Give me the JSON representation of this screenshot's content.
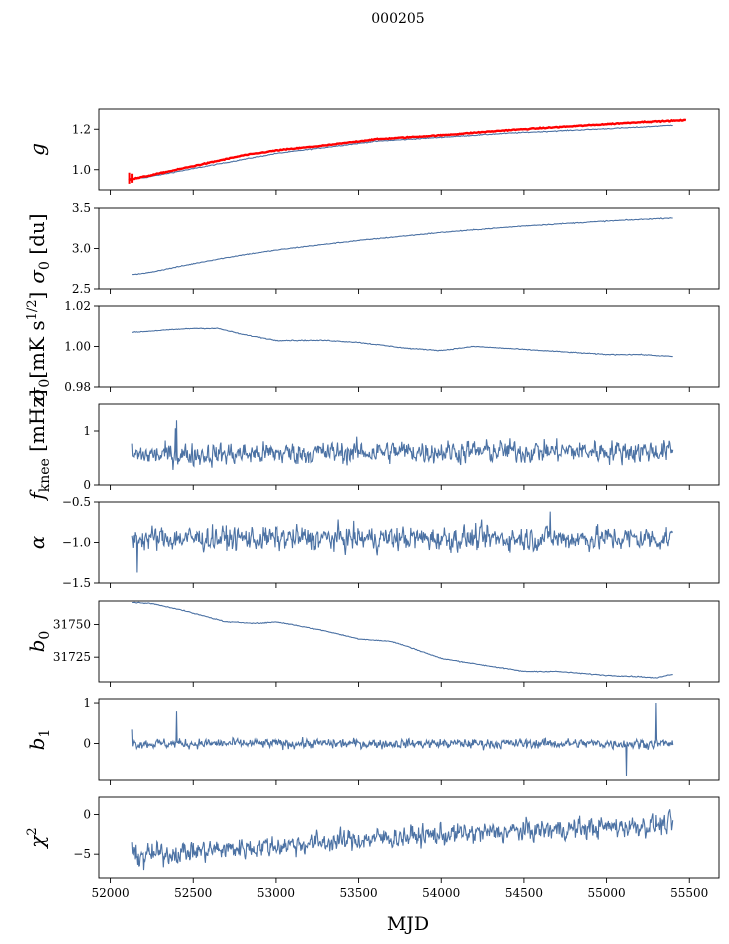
{
  "figure": {
    "suptitle": "000205",
    "xlabel": "MJD",
    "x_ticks": [
      52000,
      52500,
      53000,
      53500,
      54000,
      54500,
      55000,
      55500
    ],
    "xlim": [
      51930,
      55680
    ]
  },
  "chart_data": [
    {
      "type": "line",
      "ylabel": "g",
      "ylim": [
        0.9,
        1.3
      ],
      "yticks": [
        1.0,
        1.2
      ],
      "ytick_labels": [
        "1.0",
        "1.2"
      ],
      "series": [
        {
          "color": "#4c72a4",
          "x": [
            52120,
            52200,
            52400,
            52600,
            52800,
            53000,
            53300,
            53600,
            54000,
            54400,
            54800,
            55200,
            55400
          ],
          "y": [
            0.955,
            0.96,
            0.99,
            1.02,
            1.05,
            1.08,
            1.11,
            1.14,
            1.16,
            1.18,
            1.195,
            1.21,
            1.22
          ]
        },
        {
          "color": "#ff0000",
          "x": [
            52110,
            52200,
            52400,
            52600,
            52800,
            53000,
            53300,
            53600,
            54000,
            54400,
            54800,
            55200,
            55480
          ],
          "y": [
            0.95,
            0.965,
            1.0,
            1.035,
            1.07,
            1.095,
            1.12,
            1.15,
            1.17,
            1.195,
            1.215,
            1.235,
            1.245
          ]
        }
      ]
    },
    {
      "type": "line",
      "ylabel": "σ0 [du]",
      "ylim": [
        2.5,
        3.5
      ],
      "yticks": [
        2.5,
        3.0,
        3.5
      ],
      "ytick_labels": [
        "2.5",
        "3.0",
        "3.5"
      ],
      "series": [
        {
          "color": "#4c72a4",
          "x": [
            52130,
            52200,
            52400,
            52600,
            52800,
            53000,
            53200,
            53500,
            54000,
            54500,
            55000,
            55400
          ],
          "y": [
            2.68,
            2.69,
            2.77,
            2.85,
            2.92,
            2.98,
            3.03,
            3.1,
            3.2,
            3.28,
            3.34,
            3.38
          ]
        }
      ]
    },
    {
      "type": "line",
      "ylabel": "σ0[mK s^1/2]",
      "ylim": [
        0.98,
        1.02
      ],
      "yticks": [
        0.98,
        1.0,
        1.02
      ],
      "ytick_labels": [
        "0.98",
        "1.00",
        "1.02"
      ],
      "series": [
        {
          "color": "#4c72a4",
          "x": [
            52130,
            52300,
            52500,
            52650,
            52800,
            53000,
            53300,
            53500,
            53800,
            54000,
            54200,
            54400,
            54600,
            54800,
            55000,
            55200,
            55400
          ],
          "y": [
            1.007,
            1.008,
            1.009,
            1.009,
            1.006,
            1.003,
            1.003,
            1.002,
            0.999,
            0.998,
            1.0,
            0.999,
            0.998,
            0.997,
            0.996,
            0.996,
            0.995
          ]
        }
      ]
    },
    {
      "type": "line",
      "ylabel": "f_knee [mHz]",
      "ylim": [
        0,
        1.5
      ],
      "yticks": [
        0,
        1
      ],
      "ytick_labels": [
        "0",
        "1"
      ],
      "series": [
        {
          "color": "#4c72a4",
          "x_range": [
            52130,
            55400
          ],
          "n": 900,
          "baseline": [
            0.55,
            0.62,
            0.63
          ],
          "noise": 0.14,
          "spikes": [
            [
              52400,
              1.2
            ],
            [
              52390,
              1.05
            ]
          ]
        }
      ]
    },
    {
      "type": "line",
      "ylabel": "α",
      "ylim": [
        -1.5,
        -0.5
      ],
      "yticks": [
        -1.5,
        -1.0,
        -0.5
      ],
      "ytick_labels": [
        "−1.5",
        "−1.0",
        "−0.5"
      ],
      "series": [
        {
          "color": "#4c72a4",
          "x_range": [
            52130,
            55400
          ],
          "n": 900,
          "baseline": [
            -0.95,
            -0.95,
            -0.95
          ],
          "noise": 0.1,
          "spikes": [
            [
              52160,
              -1.37
            ],
            [
              54660,
              -0.62
            ]
          ]
        }
      ]
    },
    {
      "type": "line",
      "ylabel": "b0",
      "ylim": [
        31706,
        31768
      ],
      "yticks": [
        31725,
        31750
      ],
      "ytick_labels": [
        "31725",
        "31750"
      ],
      "series": [
        {
          "color": "#4c72a4",
          "x": [
            52130,
            52250,
            52400,
            52550,
            52700,
            52900,
            53000,
            53100,
            53300,
            53500,
            53700,
            53800,
            54000,
            54200,
            54500,
            54700,
            55000,
            55200,
            55300,
            55400
          ],
          "y": [
            31767,
            31766,
            31762,
            31757,
            31752,
            31751,
            31752,
            31750,
            31745,
            31739,
            31737,
            31733,
            31724,
            31720,
            31714,
            31714,
            31711,
            31710,
            31709,
            31712
          ]
        }
      ]
    },
    {
      "type": "line",
      "ylabel": "b1",
      "ylim": [
        -0.9,
        1.1
      ],
      "yticks": [
        0,
        1
      ],
      "ytick_labels": [
        "0",
        "1"
      ],
      "series": [
        {
          "color": "#4c72a4",
          "x_range": [
            52130,
            55400
          ],
          "n": 900,
          "baseline": [
            0.0,
            0.0,
            0.0
          ],
          "noise": 0.08,
          "spikes": [
            [
              52400,
              0.8
            ],
            [
              52130,
              0.35
            ],
            [
              55300,
              1.0
            ],
            [
              55120,
              -0.8
            ]
          ]
        }
      ]
    },
    {
      "type": "line",
      "ylabel": "χ2",
      "ylim": [
        -8,
        2.2
      ],
      "yticks": [
        -5,
        0
      ],
      "ytick_labels": [
        "−5",
        "0"
      ],
      "series": [
        {
          "color": "#4c72a4",
          "x_range": [
            52130,
            55400
          ],
          "n": 900,
          "baseline": [
            -5.2,
            -2.8,
            -1.2
          ],
          "noise": 0.9,
          "spikes": [
            [
              52200,
              -7.0
            ]
          ]
        }
      ]
    }
  ]
}
